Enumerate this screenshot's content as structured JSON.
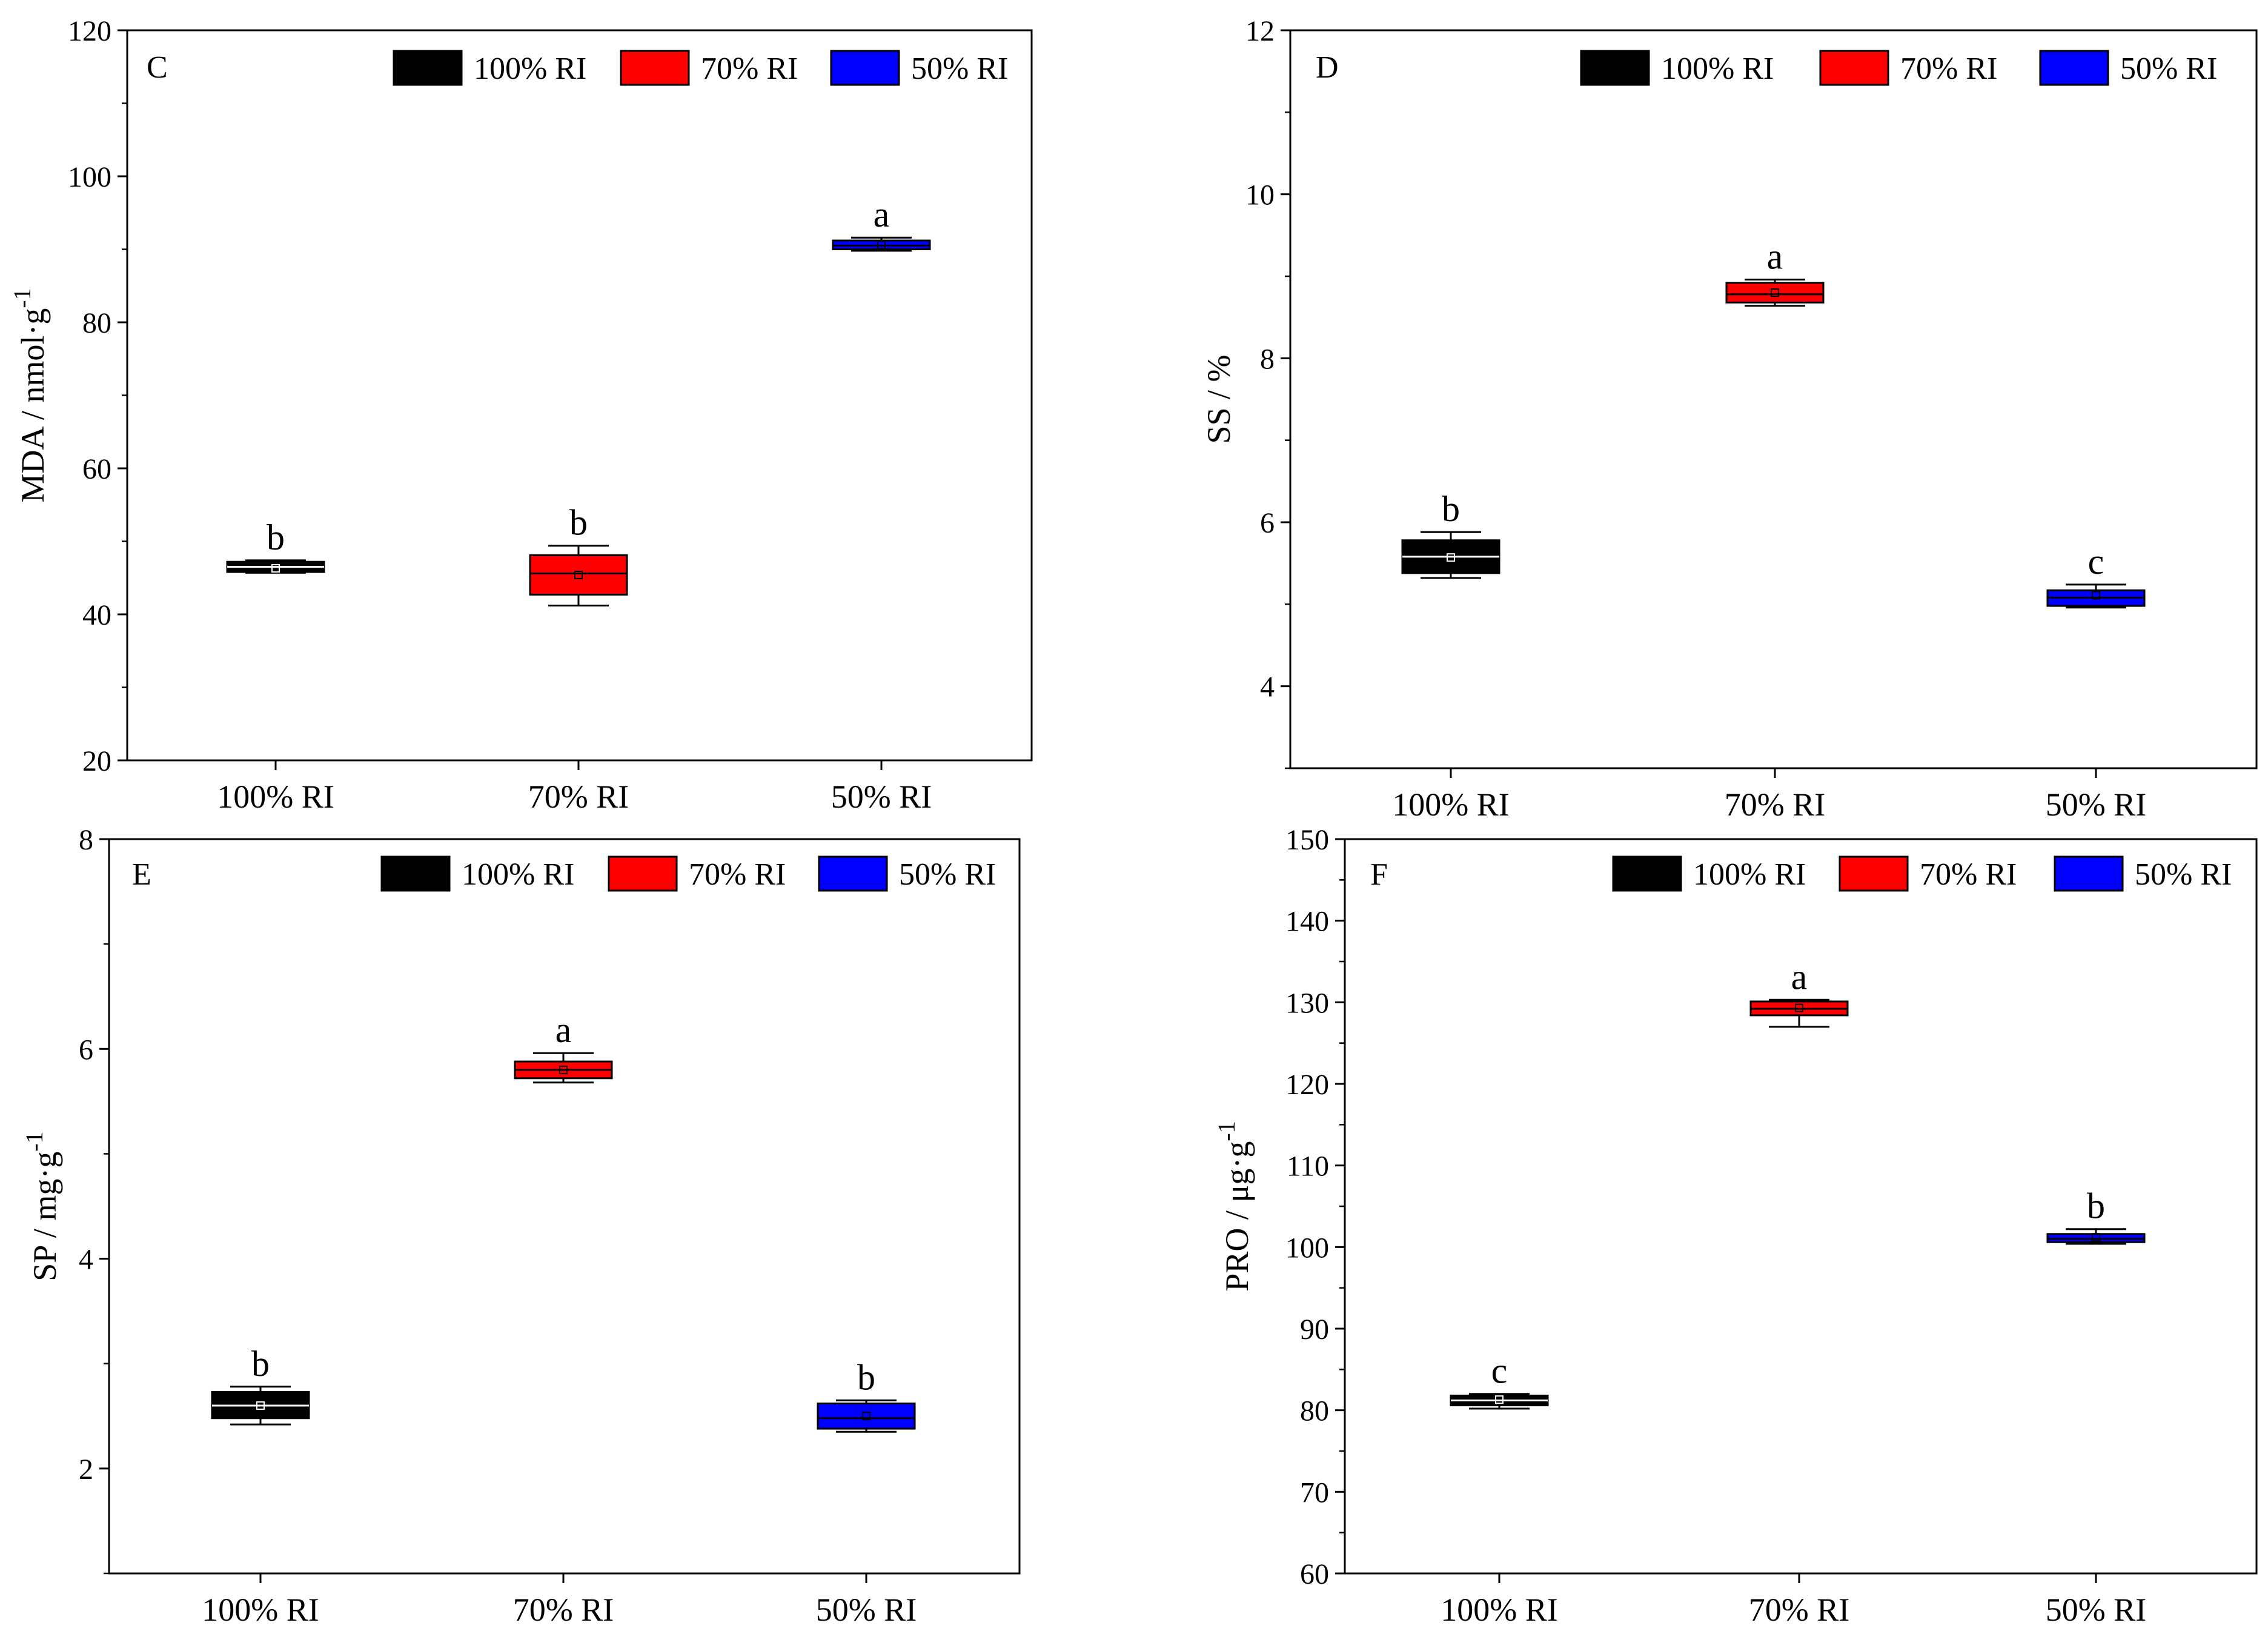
{
  "legend_labels": [
    "100% RI",
    "70% RI",
    "50% RI"
  ],
  "colors": {
    "100% RI": "#000000",
    "70% RI": "#ff0000",
    "50% RI": "#0000ff",
    "axis": "#000000"
  },
  "chart_data": [
    {
      "type": "box",
      "panel": "C",
      "categories": [
        "100% RI",
        "70% RI",
        "50% RI"
      ],
      "ylabel": "MDA / nmol·g",
      "ylabel_sup": "-1",
      "ylim": [
        20,
        120
      ],
      "yticks": [
        20,
        40,
        60,
        80,
        100,
        120
      ],
      "yminor": 10,
      "legend_position": "top-right",
      "series": [
        {
          "name": "100% RI",
          "min": 45.7,
          "q1": 45.8,
          "median": 46.5,
          "q3": 47.2,
          "max": 47.4,
          "mean": 46.3,
          "letter": "b"
        },
        {
          "name": "70% RI",
          "min": 41.2,
          "q1": 42.7,
          "median": 45.6,
          "q3": 48.1,
          "max": 49.4,
          "mean": 45.4,
          "letter": "b"
        },
        {
          "name": "50% RI",
          "min": 89.8,
          "q1": 90.0,
          "median": 90.5,
          "q3": 91.2,
          "max": 91.6,
          "mean": 90.6,
          "letter": "a"
        }
      ]
    },
    {
      "type": "box",
      "panel": "D",
      "categories": [
        "100% RI",
        "70% RI",
        "50% RI"
      ],
      "ylabel": "SS / %",
      "ylabel_sup": "",
      "ylim": [
        3,
        12
      ],
      "yticks": [
        4,
        6,
        8,
        10,
        12
      ],
      "yminor": 1,
      "legend_position": "top-right",
      "series": [
        {
          "name": "100% RI",
          "min": 5.32,
          "q1": 5.38,
          "median": 5.58,
          "q3": 5.78,
          "max": 5.88,
          "mean": 5.57,
          "letter": "b"
        },
        {
          "name": "70% RI",
          "min": 8.64,
          "q1": 8.68,
          "median": 8.78,
          "q3": 8.92,
          "max": 8.96,
          "mean": 8.8,
          "letter": "a"
        },
        {
          "name": "50% RI",
          "min": 4.96,
          "q1": 4.98,
          "median": 5.08,
          "q3": 5.17,
          "max": 5.24,
          "mean": 5.11,
          "letter": "c"
        }
      ]
    },
    {
      "type": "box",
      "panel": "E",
      "categories": [
        "100% RI",
        "70% RI",
        "50% RI"
      ],
      "ylabel": "SP / mg·g",
      "ylabel_sup": "-1",
      "ylim": [
        1,
        8
      ],
      "yticks": [
        2,
        4,
        6,
        8
      ],
      "yminor": 1,
      "legend_position": "top-right",
      "series": [
        {
          "name": "100% RI",
          "min": 2.42,
          "q1": 2.48,
          "median": 2.6,
          "q3": 2.73,
          "max": 2.78,
          "mean": 2.6,
          "letter": "b"
        },
        {
          "name": "70% RI",
          "min": 5.68,
          "q1": 5.72,
          "median": 5.8,
          "q3": 5.88,
          "max": 5.96,
          "mean": 5.8,
          "letter": "a"
        },
        {
          "name": "50% RI",
          "min": 2.35,
          "q1": 2.38,
          "median": 2.48,
          "q3": 2.62,
          "max": 2.65,
          "mean": 2.5,
          "letter": "b"
        }
      ]
    },
    {
      "type": "box",
      "panel": "F",
      "categories": [
        "100% RI",
        "70% RI",
        "50% RI"
      ],
      "ylabel": "PRO / μg·g",
      "ylabel_sup": "-1",
      "ylim": [
        60,
        150
      ],
      "yticks": [
        60,
        70,
        80,
        90,
        100,
        110,
        120,
        130,
        140,
        150
      ],
      "yminor": 5,
      "legend_position": "top-right",
      "series": [
        {
          "name": "100% RI",
          "min": 80.2,
          "q1": 80.6,
          "median": 81.2,
          "q3": 81.8,
          "max": 82.0,
          "mean": 81.3,
          "letter": "c"
        },
        {
          "name": "70% RI",
          "min": 127.0,
          "q1": 128.4,
          "median": 129.2,
          "q3": 130.1,
          "max": 130.3,
          "mean": 129.3,
          "letter": "a"
        },
        {
          "name": "50% RI",
          "min": 100.4,
          "q1": 100.6,
          "median": 101.0,
          "q3": 101.6,
          "max": 102.2,
          "mean": 101.2,
          "letter": "b"
        }
      ]
    }
  ]
}
